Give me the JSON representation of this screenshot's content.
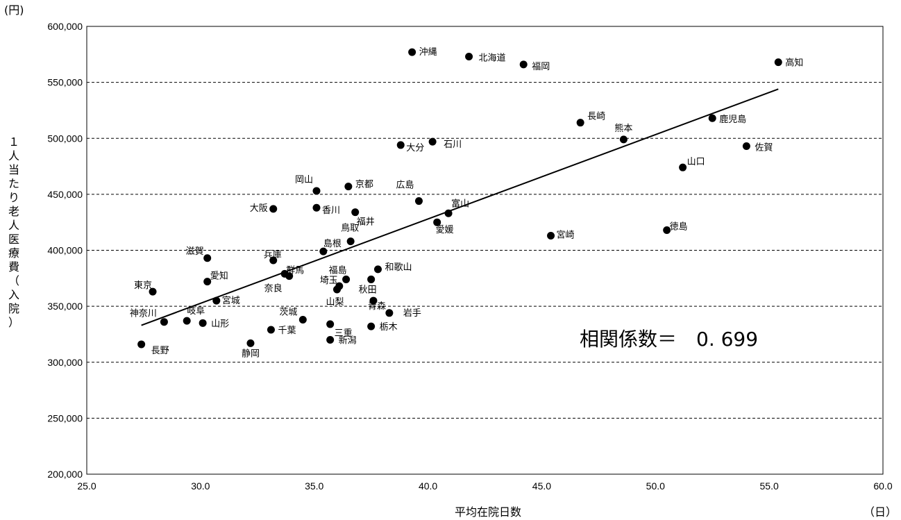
{
  "chart_data": {
    "type": "scatter",
    "xlabel": "平均在院日数",
    "x_unit": "（日）",
    "ylabel": "１人当たり老人医療費（入院）",
    "y_unit": "(円)",
    "xlim": [
      25.0,
      60.0
    ],
    "ylim": [
      200000,
      600000
    ],
    "x_ticks": [
      "25.0",
      "30.0",
      "35.0",
      "40.0",
      "45.0",
      "50.0",
      "55.0",
      "60.0"
    ],
    "y_ticks": [
      "200,000",
      "250,000",
      "300,000",
      "350,000",
      "400,000",
      "450,000",
      "500,000",
      "550,000",
      "600,000"
    ],
    "grid": "horizontal dashed",
    "annotation": "相関係数＝　0. 699",
    "trendline": {
      "x1": 27.4,
      "y1": 333000,
      "x2": 55.4,
      "y2": 544000
    },
    "points": [
      {
        "name": "沖縄",
        "x": 39.3,
        "y": 577000
      },
      {
        "name": "北海道",
        "x": 41.8,
        "y": 573000
      },
      {
        "name": "福岡",
        "x": 44.2,
        "y": 566000
      },
      {
        "name": "高知",
        "x": 55.4,
        "y": 568000
      },
      {
        "name": "長崎",
        "x": 46.7,
        "y": 514000
      },
      {
        "name": "鹿児島",
        "x": 52.5,
        "y": 518000
      },
      {
        "name": "熊本",
        "x": 48.6,
        "y": 499000
      },
      {
        "name": "佐賀",
        "x": 54.0,
        "y": 493000
      },
      {
        "name": "大分",
        "x": 38.8,
        "y": 494000
      },
      {
        "name": "石川",
        "x": 40.2,
        "y": 497000
      },
      {
        "name": "山口",
        "x": 51.2,
        "y": 474000
      },
      {
        "name": "岡山",
        "x": 35.1,
        "y": 453000
      },
      {
        "name": "京都",
        "x": 36.5,
        "y": 457000
      },
      {
        "name": "広島",
        "x": 39.6,
        "y": 444000
      },
      {
        "name": "大阪",
        "x": 33.2,
        "y": 437000
      },
      {
        "name": "香川",
        "x": 35.1,
        "y": 438000
      },
      {
        "name": "福井",
        "x": 36.8,
        "y": 434000
      },
      {
        "name": "富山",
        "x": 40.9,
        "y": 433000
      },
      {
        "name": "愛媛",
        "x": 40.4,
        "y": 425000
      },
      {
        "name": "鳥取",
        "x": 36.6,
        "y": 408000
      },
      {
        "name": "島根",
        "x": 35.4,
        "y": 399000
      },
      {
        "name": "宮崎",
        "x": 45.4,
        "y": 413000
      },
      {
        "name": "徳島",
        "x": 50.5,
        "y": 418000
      },
      {
        "name": "滋賀",
        "x": 30.3,
        "y": 393000
      },
      {
        "name": "兵庫",
        "x": 33.2,
        "y": 391000
      },
      {
        "name": "和歌山",
        "x": 37.8,
        "y": 383000
      },
      {
        "name": "群馬",
        "x": 33.7,
        "y": 379000
      },
      {
        "name": "奈良",
        "x": 33.9,
        "y": 377000
      },
      {
        "name": "愛知",
        "x": 30.3,
        "y": 372000
      },
      {
        "name": "福島",
        "x": 36.4,
        "y": 374000
      },
      {
        "name": "秋田",
        "x": 37.5,
        "y": 374000
      },
      {
        "name": "埼玉",
        "x": 36.1,
        "y": 368000
      },
      {
        "name": "東京",
        "x": 27.9,
        "y": 363000
      },
      {
        "name": "山梨",
        "x": 36.0,
        "y": 365000
      },
      {
        "name": "宮城",
        "x": 30.7,
        "y": 355000
      },
      {
        "name": "青森",
        "x": 37.6,
        "y": 355000
      },
      {
        "name": "岩手",
        "x": 38.3,
        "y": 344000
      },
      {
        "name": "神奈川",
        "x": 28.4,
        "y": 336000
      },
      {
        "name": "岐阜",
        "x": 29.4,
        "y": 337000
      },
      {
        "name": "山形",
        "x": 30.1,
        "y": 335000
      },
      {
        "name": "茨城",
        "x": 34.5,
        "y": 338000
      },
      {
        "name": "三重",
        "x": 35.7,
        "y": 334000
      },
      {
        "name": "栃木",
        "x": 37.5,
        "y": 332000
      },
      {
        "name": "千葉",
        "x": 33.1,
        "y": 329000
      },
      {
        "name": "新潟",
        "x": 35.7,
        "y": 320000
      },
      {
        "name": "静岡",
        "x": 32.2,
        "y": 317000
      },
      {
        "name": "長野",
        "x": 27.4,
        "y": 316000
      }
    ]
  }
}
